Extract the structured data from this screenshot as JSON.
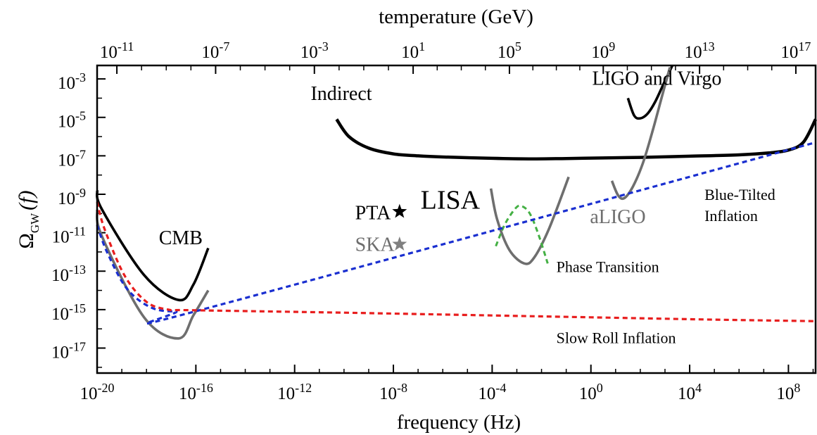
{
  "chart_data": {
    "type": "line",
    "title": "",
    "xlabel": "frequency (Hz)",
    "ylabel_main": "Ω",
    "ylabel_sub": "GW",
    "ylabel_arg": "(f)",
    "top_axis_label": "temperature (GeV)",
    "x_scale": "log",
    "y_scale": "log",
    "xlim_log10": [
      -20,
      9.1
    ],
    "ylim_log10": [
      -18.3,
      -2.3
    ],
    "x_ticks": [
      {
        "base": "10",
        "exp": "-20",
        "log": -20
      },
      {
        "base": "10",
        "exp": "-16",
        "log": -16
      },
      {
        "base": "10",
        "exp": "-12",
        "log": -12
      },
      {
        "base": "10",
        "exp": "-8",
        "log": -8
      },
      {
        "base": "10",
        "exp": "-4",
        "log": -4
      },
      {
        "base": "10",
        "exp": "0",
        "log": 0
      },
      {
        "base": "10",
        "exp": "4",
        "log": 4
      },
      {
        "base": "10",
        "exp": "8",
        "log": 8
      }
    ],
    "y_ticks": [
      {
        "base": "10",
        "exp": "-3",
        "log": -3
      },
      {
        "base": "10",
        "exp": "-5",
        "log": -5
      },
      {
        "base": "10",
        "exp": "-7",
        "log": -7
      },
      {
        "base": "10",
        "exp": "-9",
        "log": -9
      },
      {
        "base": "10",
        "exp": "-11",
        "log": -11
      },
      {
        "base": "10",
        "exp": "-13",
        "log": -13
      },
      {
        "base": "10",
        "exp": "-15",
        "log": -15
      },
      {
        "base": "10",
        "exp": "-17",
        "log": -17
      }
    ],
    "top_ticks": [
      {
        "base": "10",
        "exp": "-11",
        "at_freq_log": -19.2
      },
      {
        "base": "10",
        "exp": "-7",
        "at_freq_log": -15.2
      },
      {
        "base": "10",
        "exp": "-3",
        "at_freq_log": -11.2
      },
      {
        "base": "10",
        "exp": "1",
        "at_freq_log": -7.2
      },
      {
        "base": "10",
        "exp": "5",
        "at_freq_log": -3.3
      },
      {
        "base": "10",
        "exp": "9",
        "at_freq_log": 0.5
      },
      {
        "base": "10",
        "exp": "13",
        "at_freq_log": 4.4
      },
      {
        "base": "10",
        "exp": "17",
        "at_freq_log": 8.3
      }
    ],
    "series": [
      {
        "name": "CMB",
        "color": "#000000",
        "dash": false,
        "width": 3.6,
        "points": [
          [
            -20,
            -8.8
          ],
          [
            -19.8,
            -9.8
          ],
          [
            -18.1,
            -13.2
          ],
          [
            -16.7,
            -14.5
          ],
          [
            -16.1,
            -13.7
          ],
          [
            -15.5,
            -11.8
          ]
        ]
      },
      {
        "name": "",
        "color": "#6e6e6e",
        "dash": false,
        "width": 3.6,
        "points": [
          [
            -20,
            -9.8
          ],
          [
            -19.8,
            -11.2
          ],
          [
            -18.1,
            -15.4
          ],
          [
            -16.7,
            -16.5
          ],
          [
            -16.1,
            -15.3
          ],
          [
            -15.5,
            -14.0
          ]
        ]
      },
      {
        "name": "Indirect",
        "color": "#000000",
        "dash": false,
        "width": 4.5,
        "points": [
          [
            -10.3,
            -5.1
          ],
          [
            -9.8,
            -6.0
          ],
          [
            -9.0,
            -6.6
          ],
          [
            -8.0,
            -6.9
          ],
          [
            -7.0,
            -7.0
          ],
          [
            -6.0,
            -7.06
          ],
          [
            -4.0,
            -7.13
          ],
          [
            -2.5,
            -7.16
          ],
          [
            -1.0,
            -7.14
          ],
          [
            0.5,
            -7.11
          ],
          [
            2.0,
            -7.08
          ],
          [
            4.0,
            -7.02
          ],
          [
            6.0,
            -6.95
          ],
          [
            7.2,
            -6.85
          ],
          [
            8.0,
            -6.7
          ],
          [
            8.6,
            -6.3
          ],
          [
            9.1,
            -5.1
          ]
        ]
      },
      {
        "name": "LIGO and Virgo",
        "color": "#000000",
        "dash": false,
        "width": 3.6,
        "points": [
          [
            1.5,
            -4.0
          ],
          [
            1.75,
            -4.9
          ],
          [
            2.0,
            -5.05
          ],
          [
            2.3,
            -4.8
          ],
          [
            2.6,
            -4.2
          ],
          [
            3.0,
            -3.1
          ],
          [
            3.3,
            -2.3
          ]
        ]
      },
      {
        "name": "aLIGO",
        "color": "#6e6e6e",
        "dash": false,
        "width": 3.6,
        "points": [
          [
            0.85,
            -8.3
          ],
          [
            1.1,
            -9.05
          ],
          [
            1.35,
            -9.2
          ],
          [
            1.7,
            -8.6
          ],
          [
            2.1,
            -7.4
          ],
          [
            2.5,
            -5.7
          ],
          [
            2.9,
            -3.8
          ],
          [
            3.2,
            -2.4
          ]
        ]
      },
      {
        "name": "LISA",
        "color": "#6e6e6e",
        "dash": false,
        "width": 3.6,
        "points": [
          [
            -4.05,
            -8.7
          ],
          [
            -3.8,
            -10.3
          ],
          [
            -3.3,
            -11.9
          ],
          [
            -2.7,
            -12.6
          ],
          [
            -2.3,
            -12.3
          ],
          [
            -1.7,
            -10.8
          ],
          [
            -0.9,
            -8.1
          ]
        ]
      },
      {
        "name": "Phase Transition",
        "color": "#44b044",
        "dash": true,
        "width": 3.0,
        "points": [
          [
            -3.85,
            -11.7
          ],
          [
            -3.5,
            -10.6
          ],
          [
            -3.1,
            -9.8
          ],
          [
            -2.85,
            -9.6
          ],
          [
            -2.5,
            -9.95
          ],
          [
            -2.15,
            -11.0
          ],
          [
            -1.75,
            -12.6
          ]
        ]
      },
      {
        "name": "Blue-Tilted Inflation",
        "color": "#1a2fd0",
        "dash": true,
        "width": 3.2,
        "points": [
          [
            -20,
            -10.6
          ],
          [
            -19.6,
            -12.0
          ],
          [
            -18.8,
            -13.9
          ],
          [
            -17.8,
            -14.9
          ],
          [
            -16.8,
            -15.1
          ],
          [
            -15.9,
            -15.05
          ],
          [
            9.1,
            -6.3
          ]
        ]
      },
      {
        "name": "Slow Roll Inflation",
        "color": "#e81e1e",
        "dash": true,
        "width": 3.2,
        "points": [
          [
            -20,
            -9.4
          ],
          [
            -19.7,
            -10.8
          ],
          [
            -18.9,
            -13.2
          ],
          [
            -18.0,
            -14.6
          ],
          [
            -17.1,
            -15.0
          ],
          [
            -16.2,
            -15.03
          ],
          [
            -10,
            -15.16
          ],
          [
            -5,
            -15.28
          ],
          [
            0,
            -15.4
          ],
          [
            5,
            -15.52
          ],
          [
            9.1,
            -15.6
          ]
        ]
      }
    ],
    "markers": [
      {
        "name": "PTA",
        "color": "#000000",
        "x": -7.75,
        "y": -9.9
      },
      {
        "name": "SKA",
        "color": "#808080",
        "x": -7.75,
        "y": -11.6
      }
    ],
    "annotations": [
      {
        "key": "cmb",
        "text": "CMB",
        "color": "#000000",
        "size": 28,
        "x": -17.5,
        "y": -11.6
      },
      {
        "key": "indirect",
        "text": "Indirect",
        "color": "#000000",
        "size": 28,
        "x": -11.35,
        "y": -4.1
      },
      {
        "key": "ligo_virgo",
        "text": "LIGO and Virgo",
        "color": "#000000",
        "size": 28,
        "x": 0.05,
        "y": -3.3
      },
      {
        "key": "lisa",
        "text": "LISA",
        "color": "#000000",
        "size": 38,
        "x": -6.9,
        "y": -9.75
      },
      {
        "key": "aligo",
        "text": "aLIGO",
        "color": "#6e6e6e",
        "size": 28,
        "x": -0.04,
        "y": -10.5
      },
      {
        "key": "pta",
        "text": "PTA",
        "color": "#000000",
        "size": 28,
        "x": -9.55,
        "y": -10.3
      },
      {
        "key": "ska",
        "text": "SKA",
        "color": "#6e6e6e",
        "size": 28,
        "x": -9.55,
        "y": -11.95
      },
      {
        "key": "phase_transition",
        "text": "Phase Transition",
        "color": "#000000",
        "size": 22,
        "x": -1.4,
        "y": -13.05
      },
      {
        "key": "blue_tilted_1",
        "text": "Blue-Tilted",
        "color": "#000000",
        "size": 22,
        "x": 4.6,
        "y": -9.3
      },
      {
        "key": "blue_tilted_2",
        "text": "Inflation",
        "color": "#000000",
        "size": 22,
        "x": 4.6,
        "y": -10.4
      },
      {
        "key": "slow_roll",
        "text": "Slow Roll Inflation",
        "color": "#000000",
        "size": 22,
        "x": -1.4,
        "y": -16.75
      }
    ],
    "grid": false,
    "legend": "none"
  }
}
